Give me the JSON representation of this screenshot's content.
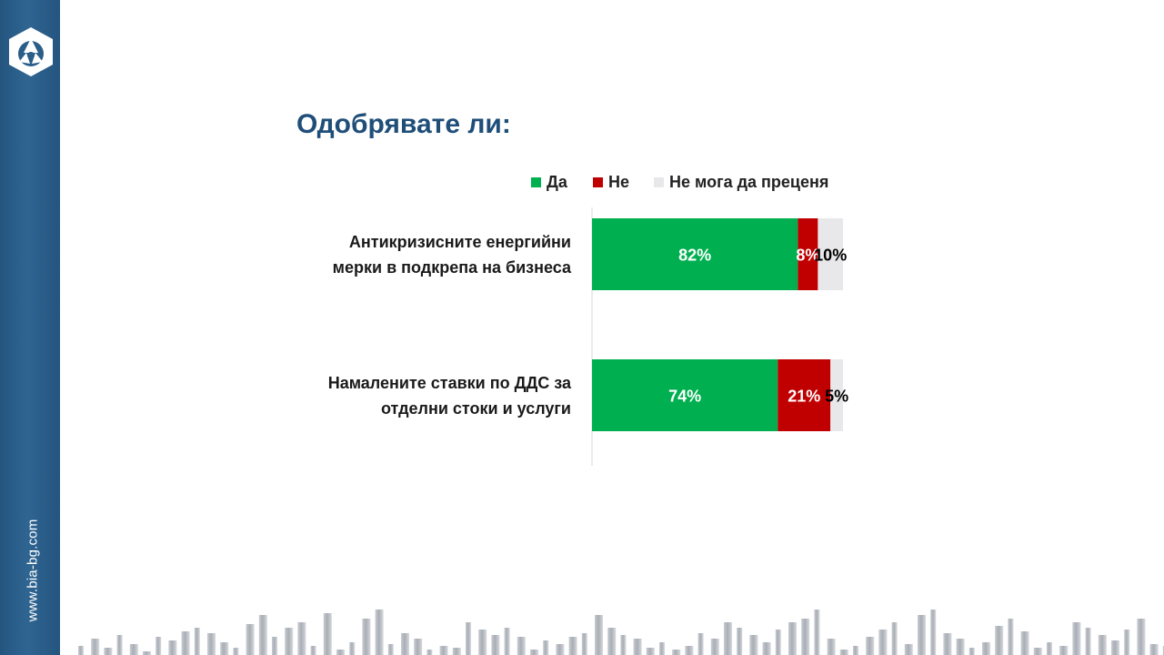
{
  "sidebar": {
    "site_url": "www.bia-bg.com"
  },
  "chart_data": {
    "type": "bar",
    "orientation": "horizontal",
    "stacked": true,
    "title": "Одобрявате ли:",
    "categories": [
      "Антикризисните енергийни мерки в подкрепа на бизнеса",
      "Намалените ставки по ДДС за отделни стоки и услуги"
    ],
    "category_lines": [
      [
        "Антикризисните енергийни",
        "мерки в подкрепа на бизнеса"
      ],
      [
        "Намалените ставки по ДДС за",
        "отделни стоки и услуги"
      ]
    ],
    "series": [
      {
        "name": "Да",
        "values": [
          82,
          74
        ],
        "labels": [
          "82%",
          "74%"
        ],
        "color": "#00b050",
        "label_color": "#ffffff"
      },
      {
        "name": "Не",
        "values": [
          8,
          21
        ],
        "labels": [
          "8%",
          "21%"
        ],
        "color": "#c00000",
        "label_color": "#ffffff"
      },
      {
        "name": "Не мога да преценя",
        "values": [
          10,
          5
        ],
        "labels": [
          "10%",
          "5%"
        ],
        "color": "#e8e8ea",
        "label_color": "#000000"
      }
    ],
    "xlim": [
      0,
      100
    ],
    "legend_position": "top",
    "grid": false
  }
}
